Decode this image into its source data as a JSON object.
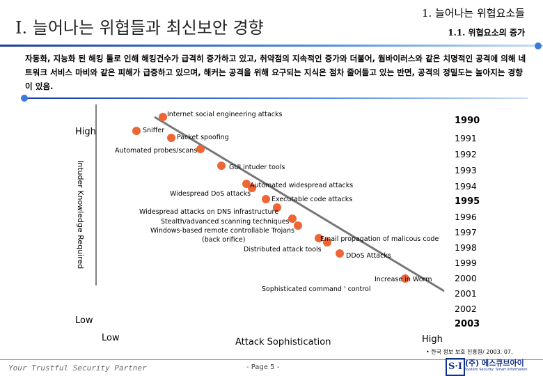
{
  "header": {
    "title": "I. 늘어나는 위협들과 최신보안 경향",
    "section": "1. 늘어나는 위협요소들",
    "subsection": "1.1. 위협요소의 증가"
  },
  "intro": "자동화, 지능화 된 해킹 툴로 인해 해킹건수가 급격히 증가하고 있고, 취약점의 지속적인 증가와 더불어, 웜바이러스와 같은 치명적인 공격에 의해 네트워크 서비스 마비와 같은 피해가 급증하고 있으며, 해커는 공격을 위해 요구되는 지식은 점차 줄어들고 있는 반면, 공격의 정밀도는 높아지는 경향이 있음.",
  "axes": {
    "y_label": "Intuder Knowledge Required",
    "y_high": "High",
    "y_low": "Low",
    "x_low": "Low",
    "x_label": "Attack Sophistication",
    "x_high": "High"
  },
  "attacks": [
    "Internet social engineering attacks",
    "Sniffer",
    "Packet spoofing",
    "Automated probes/scans",
    "GUI intuder tools",
    "Automated widespread attacks",
    "Widespread DoS attacks",
    "Executable code attacks",
    "Widespread attacks on DNS infrastructure",
    "Stealth/advanced scanning techniques",
    "Windows-based remote controllable Trojans",
    "(back orifice)",
    "Email propagation of malicous code",
    "Distributed attack tools",
    "DDoS Attacks",
    "Increase in Worm",
    "Sophisticated command ' control"
  ],
  "years": [
    "1990",
    "1991",
    "1992",
    "1993",
    "1994",
    "1995",
    "1996",
    "1997",
    "1998",
    "1999",
    "2000",
    "2001",
    "2002",
    "2003"
  ],
  "colors": {
    "marker": "#ee6633",
    "trend": "#777777",
    "accent": "#1a3da0"
  },
  "footer": {
    "slogan": "Your Trustful Security Partner",
    "page": "- Page 5 -",
    "source": "• 한국 정보 보호 진흥원/ 2003. 07.",
    "logo": "S·I",
    "company": "(주) 에스큐브아이",
    "tagline": "System Security, Smart Information"
  }
}
